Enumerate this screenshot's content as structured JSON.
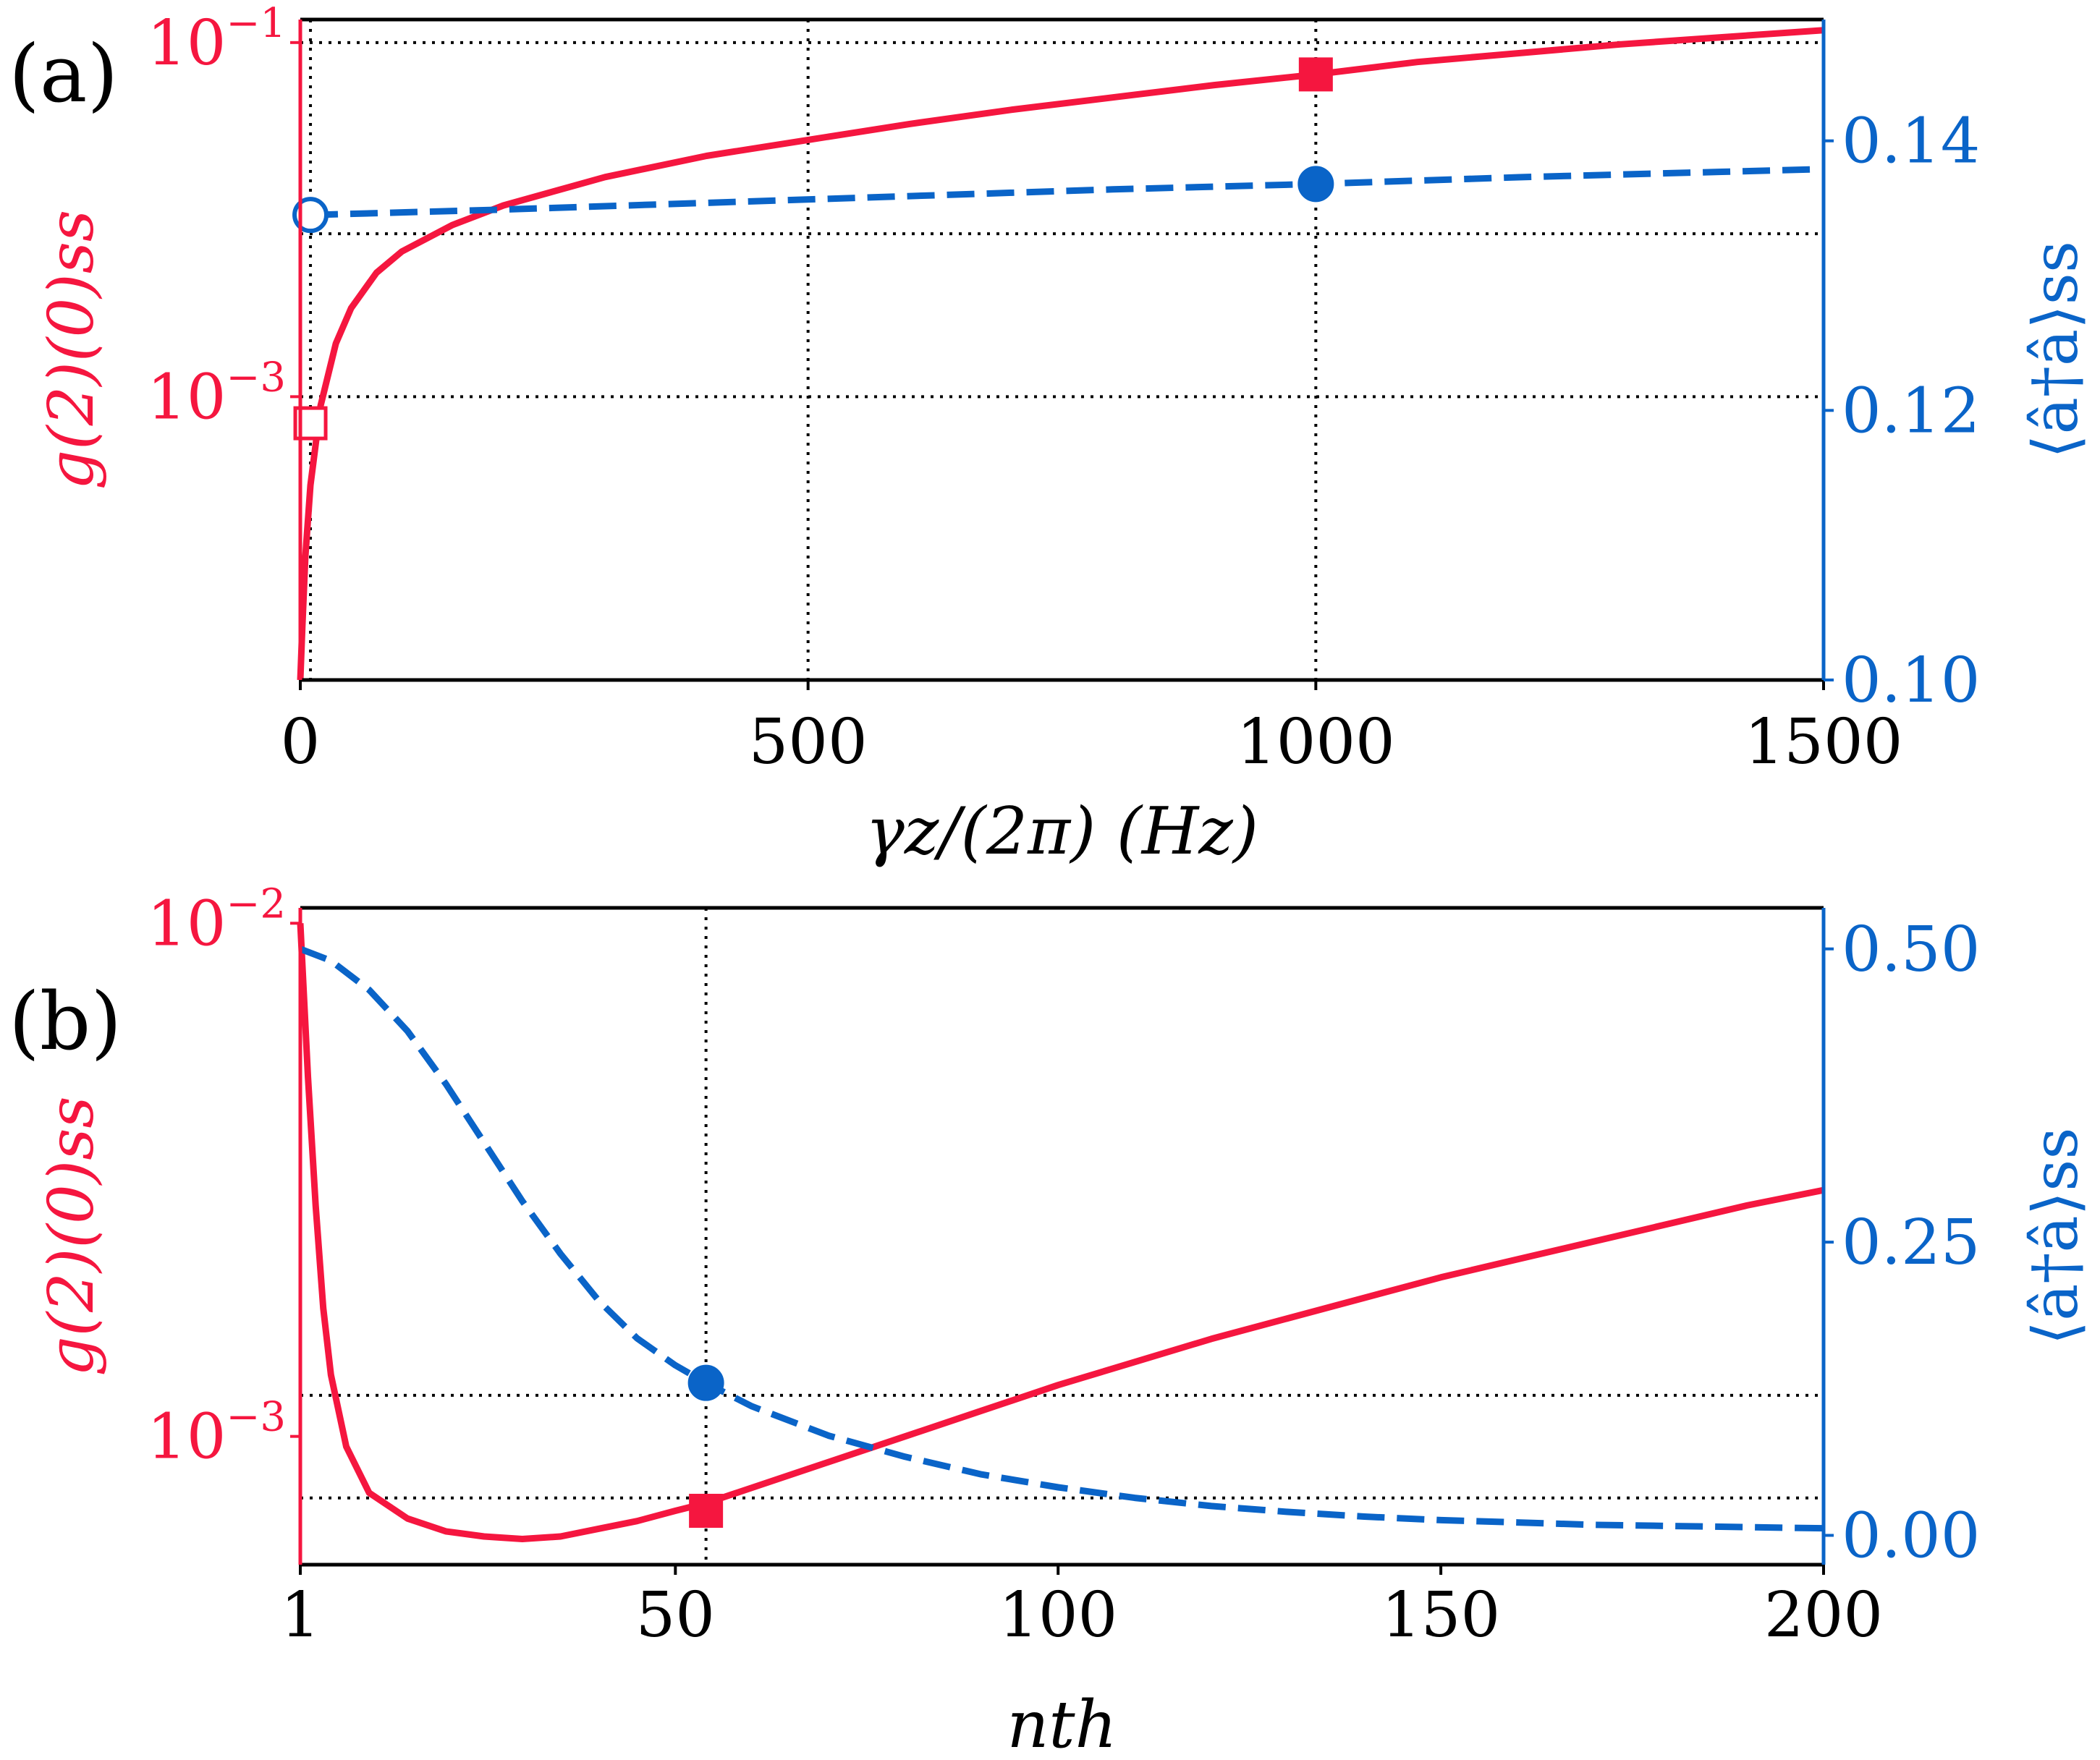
{
  "colors": {
    "left_axis": "#f5163f",
    "right_axis": "#0a64c8",
    "grid": "#000000",
    "frame": "#000000"
  },
  "chart_data": [
    {
      "panel_label": "(a)",
      "type": "line",
      "xlabel": "γz/(2π) (Hz)",
      "x_ticks": [
        "0",
        "500",
        "1000",
        "1500"
      ],
      "xlim": [
        0,
        1500
      ],
      "left_axis": {
        "label": "g(2)(0)ss",
        "scale": "log",
        "ylim_log10": [
          -4.6,
          -0.87
        ],
        "tick_labels": [
          {
            "base": "10",
            "exp": "−1",
            "log10": -1
          },
          {
            "base": "10",
            "exp": "−3",
            "log10": -3
          }
        ]
      },
      "right_axis": {
        "label": "⟨â†â⟩ss",
        "scale": "linear",
        "ylim": [
          0.1,
          0.149
        ],
        "tick_labels": [
          "0.10",
          "0.12",
          "0.14"
        ],
        "ticks": [
          0.1,
          0.12,
          0.14
        ]
      },
      "grid": {
        "x": [
          10,
          500,
          1000
        ],
        "left_log10": [
          -1,
          -2.08,
          -3
        ]
      },
      "series": [
        {
          "axis": "left",
          "style": "solid",
          "points": [
            [
              0,
              -4.6
            ],
            [
              2,
              -4.3
            ],
            [
              5,
              -3.9
            ],
            [
              10,
              -3.5
            ],
            [
              20,
              -3.05
            ],
            [
              35,
              -2.7
            ],
            [
              50,
              -2.5
            ],
            [
              75,
              -2.3
            ],
            [
              100,
              -2.18
            ],
            [
              150,
              -2.03
            ],
            [
              200,
              -1.92
            ],
            [
              300,
              -1.76
            ],
            [
              400,
              -1.64
            ],
            [
              500,
              -1.55
            ],
            [
              600,
              -1.46
            ],
            [
              700,
              -1.38
            ],
            [
              800,
              -1.31
            ],
            [
              900,
              -1.24
            ],
            [
              1000,
              -1.18
            ],
            [
              1100,
              -1.11
            ],
            [
              1200,
              -1.06
            ],
            [
              1300,
              -1.01
            ],
            [
              1400,
              -0.97
            ],
            [
              1500,
              -0.93
            ]
          ]
        },
        {
          "axis": "right",
          "style": "dashed",
          "points": [
            [
              10,
              0.1345
            ],
            [
              200,
              0.1349
            ],
            [
              400,
              0.1354
            ],
            [
              600,
              0.1359
            ],
            [
              800,
              0.1364
            ],
            [
              1000,
              0.1368
            ],
            [
              1200,
              0.1373
            ],
            [
              1400,
              0.1377
            ],
            [
              1500,
              0.1379
            ]
          ]
        }
      ],
      "markers": [
        {
          "axis": "left",
          "shape": "square",
          "filled": true,
          "x": 1000,
          "y": -1.18
        },
        {
          "axis": "left",
          "shape": "square",
          "filled": false,
          "x": 10,
          "y": -3.15
        },
        {
          "axis": "right",
          "shape": "circle",
          "filled": true,
          "x": 1000,
          "y": 0.1368
        },
        {
          "axis": "right",
          "shape": "circle",
          "filled": false,
          "x": 10,
          "y": 0.1345
        }
      ]
    },
    {
      "panel_label": "(b)",
      "type": "line",
      "xlabel": "nth",
      "x_ticks": [
        "1",
        "50",
        "100",
        "150",
        "200"
      ],
      "xlim": [
        1,
        200
      ],
      "left_axis": {
        "label": "g(2)(0)ss",
        "scale": "log",
        "ylim_log10": [
          -3.25,
          -1.97
        ],
        "tick_labels": [
          {
            "base": "10",
            "exp": "−2",
            "log10": -2
          },
          {
            "base": "10",
            "exp": "−3",
            "log10": -3
          }
        ]
      },
      "right_axis": {
        "label": "⟨â†â⟩ss",
        "scale": "linear",
        "ylim": [
          -0.025,
          0.535
        ],
        "tick_labels": [
          "0.00",
          "0.25",
          "0.50"
        ],
        "ticks": [
          0.0,
          0.25,
          0.5
        ]
      },
      "grid": {
        "x": [
          54
        ],
        "left_log10": [
          -2.92,
          -3.12
        ]
      },
      "series": [
        {
          "axis": "left",
          "style": "solid",
          "points": [
            [
              1,
              -2.0
            ],
            [
              2,
              -2.3
            ],
            [
              3,
              -2.55
            ],
            [
              4,
              -2.75
            ],
            [
              5,
              -2.88
            ],
            [
              7,
              -3.02
            ],
            [
              10,
              -3.11
            ],
            [
              15,
              -3.16
            ],
            [
              20,
              -3.185
            ],
            [
              25,
              -3.195
            ],
            [
              30,
              -3.2
            ],
            [
              35,
              -3.195
            ],
            [
              40,
              -3.18
            ],
            [
              45,
              -3.165
            ],
            [
              50,
              -3.145
            ],
            [
              54,
              -3.13
            ],
            [
              60,
              -3.1
            ],
            [
              70,
              -3.05
            ],
            [
              80,
              -3.0
            ],
            [
              90,
              -2.95
            ],
            [
              100,
              -2.9
            ],
            [
              110,
              -2.855
            ],
            [
              120,
              -2.81
            ],
            [
              130,
              -2.77
            ],
            [
              140,
              -2.73
            ],
            [
              150,
              -2.69
            ],
            [
              160,
              -2.655
            ],
            [
              170,
              -2.62
            ],
            [
              180,
              -2.585
            ],
            [
              190,
              -2.55
            ],
            [
              200,
              -2.52
            ]
          ]
        },
        {
          "axis": "right",
          "style": "dashed",
          "points": [
            [
              1,
              0.5
            ],
            [
              5,
              0.49
            ],
            [
              10,
              0.465
            ],
            [
              15,
              0.43
            ],
            [
              20,
              0.385
            ],
            [
              25,
              0.335
            ],
            [
              30,
              0.285
            ],
            [
              35,
              0.24
            ],
            [
              40,
              0.2
            ],
            [
              45,
              0.168
            ],
            [
              50,
              0.145
            ],
            [
              54,
              0.13
            ],
            [
              60,
              0.11
            ],
            [
              70,
              0.085
            ],
            [
              80,
              0.067
            ],
            [
              90,
              0.052
            ],
            [
              100,
              0.041
            ],
            [
              110,
              0.032
            ],
            [
              120,
              0.025
            ],
            [
              130,
              0.02
            ],
            [
              140,
              0.016
            ],
            [
              150,
              0.013
            ],
            [
              160,
              0.011
            ],
            [
              170,
              0.009
            ],
            [
              180,
              0.008
            ],
            [
              190,
              0.007
            ],
            [
              200,
              0.006
            ]
          ]
        }
      ],
      "markers": [
        {
          "axis": "left",
          "shape": "square",
          "filled": true,
          "x": 54,
          "y": -3.145
        },
        {
          "axis": "right",
          "shape": "circle",
          "filled": true,
          "x": 54,
          "y": 0.13
        }
      ]
    }
  ]
}
